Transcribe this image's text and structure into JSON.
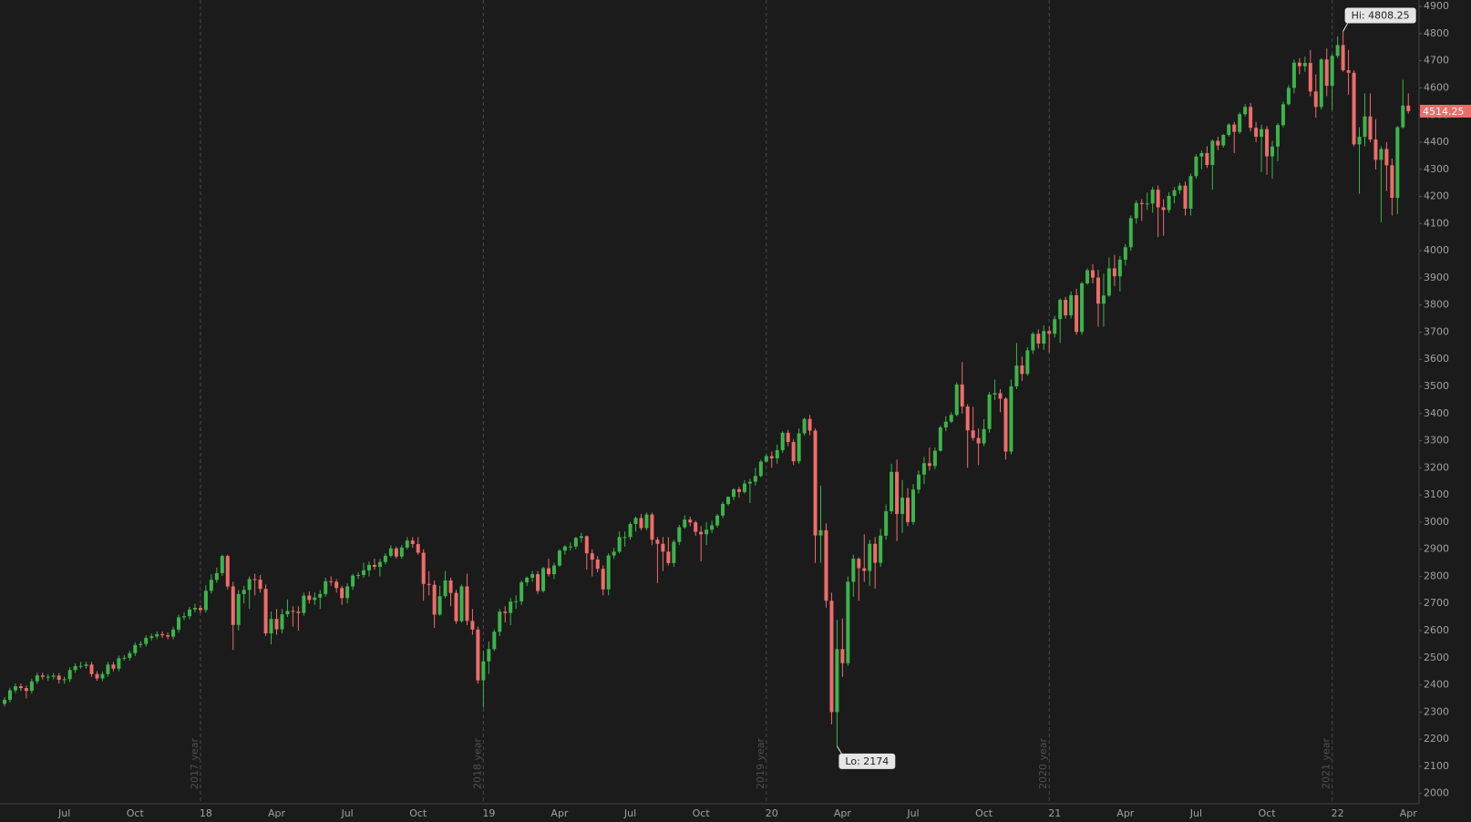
{
  "chart_data": {
    "type": "candlestick",
    "up_color": "#3cb44b",
    "down_color": "#f06b6b",
    "ylim": [
      1962,
      4924
    ],
    "yticks": [
      2000,
      2100,
      2200,
      2300,
      2400,
      2500,
      2600,
      2700,
      2800,
      2900,
      3000,
      3100,
      3200,
      3300,
      3400,
      3500,
      3600,
      3700,
      3800,
      3900,
      4000,
      4100,
      4200,
      4300,
      4400,
      4500,
      4600,
      4700,
      4800,
      4900
    ],
    "year_lines": [
      "2017 year",
      "2018 year",
      "2019 year",
      "2020 year",
      "2021 year"
    ],
    "annotations": [
      {
        "text": "Hi: 4808.25"
      },
      {
        "text": "Lo: 2174"
      }
    ],
    "categories": [
      null,
      null,
      null,
      null,
      null,
      null,
      null,
      null,
      null,
      null,
      null,
      "Jul",
      null,
      null,
      null,
      null,
      null,
      null,
      null,
      null,
      null,
      null,
      null,
      null,
      "Oct",
      null,
      null,
      null,
      null,
      null,
      null,
      null,
      null,
      null,
      null,
      null,
      null,
      "18",
      null,
      null,
      null,
      null,
      null,
      null,
      null,
      null,
      null,
      null,
      null,
      null,
      "Apr",
      null,
      null,
      null,
      null,
      null,
      null,
      null,
      null,
      null,
      null,
      null,
      null,
      "Jul",
      null,
      null,
      null,
      null,
      null,
      null,
      null,
      null,
      null,
      null,
      null,
      null,
      "Oct",
      null,
      null,
      null,
      null,
      null,
      null,
      null,
      null,
      null,
      null,
      null,
      null,
      "19",
      null,
      null,
      null,
      null,
      null,
      null,
      null,
      null,
      null,
      null,
      null,
      null,
      "Apr",
      null,
      null,
      null,
      null,
      null,
      null,
      null,
      null,
      null,
      null,
      null,
      null,
      "Jul",
      null,
      null,
      null,
      null,
      null,
      null,
      null,
      null,
      null,
      null,
      null,
      null,
      "Oct",
      null,
      null,
      null,
      null,
      null,
      null,
      null,
      null,
      null,
      null,
      null,
      null,
      "20",
      null,
      null,
      null,
      null,
      null,
      null,
      null,
      null,
      null,
      null,
      null,
      null,
      "Apr",
      null,
      null,
      null,
      null,
      null,
      null,
      null,
      null,
      null,
      null,
      null,
      null,
      "Jul",
      null,
      null,
      null,
      null,
      null,
      null,
      null,
      null,
      null,
      null,
      null,
      null,
      "Oct",
      null,
      null,
      null,
      null,
      null,
      null,
      null,
      null,
      null,
      null,
      null,
      null,
      "21",
      null,
      null,
      null,
      null,
      null,
      null,
      null,
      null,
      null,
      null,
      null,
      null,
      "Apr",
      null,
      null,
      null,
      null,
      null,
      null,
      null,
      null,
      null,
      null,
      null,
      null,
      "Jul",
      null,
      null,
      null,
      null,
      null,
      null,
      null,
      null,
      null,
      null,
      null,
      null,
      "Oct",
      null,
      null,
      null,
      null,
      null,
      null,
      null,
      null,
      null,
      null,
      null,
      null,
      "22",
      null,
      null,
      null,
      null,
      null,
      null,
      null,
      null,
      null,
      null,
      null,
      null,
      "Apr"
    ],
    "open": [
      2330,
      2345,
      2380,
      2395,
      2388,
      2378,
      2413,
      2435,
      2430,
      2430,
      2434,
      2419,
      2421,
      2455,
      2469,
      2470,
      2475,
      2440,
      2424,
      2440,
      2475,
      2460,
      2498,
      2500,
      2517,
      2547,
      2551,
      2573,
      2579,
      2587,
      2583,
      2578,
      2604,
      2649,
      2653,
      2678,
      2684,
      2676,
      2747,
      2787,
      2812,
      2875,
      2763,
      2621,
      2735,
      2750,
      2790,
      2788,
      2754,
      2590,
      2643,
      2605,
      2660,
      2673,
      2670,
      2665,
      2729,
      2713,
      2722,
      2735,
      2782,
      2780,
      2757,
      2720,
      2763,
      2803,
      2805,
      2822,
      2842,
      2835,
      2853,
      2876,
      2903,
      2873,
      2906,
      2932,
      2919,
      2887,
      2772,
      2769,
      2659,
      2727,
      2785,
      2739,
      2635,
      2763,
      2636,
      2604,
      2417,
      2487,
      2532,
      2596,
      2670,
      2665,
      2707,
      2708,
      2778,
      2795,
      2808,
      2746,
      2830,
      2808,
      2840,
      2895,
      2910,
      2910,
      2942,
      2948,
      2885,
      2862,
      2828,
      2752,
      2877,
      2891,
      2945,
      2945,
      2993,
      3015,
      2978,
      3028,
      2935,
      2920,
      2891,
      2849,
      2927,
      2981,
      3009,
      2999,
      2964,
      2955,
      2972,
      2988,
      3024,
      3067,
      3093,
      3121,
      3111,
      3142,
      3149,
      3170,
      3223,
      3243,
      3235,
      3265,
      3329,
      3295,
      3224,
      3327,
      3380,
      3337,
      2951,
      2970,
      2710,
      2300,
      2532,
      2480,
      2780,
      2865,
      2830,
      2820,
      2920,
      2850,
      2950,
      3040,
      3185,
      3030,
      3090,
      3000,
      3120,
      3175,
      3217,
      3207,
      3263,
      3349,
      3370,
      3395,
      3507,
      3426,
      3338,
      3310,
      3290,
      3343,
      3470,
      3475,
      3455,
      3260,
      3500,
      3577,
      3546,
      3633,
      3694,
      3658,
      3704,
      3694,
      3748,
      3819,
      3762,
      3836,
      3701,
      3880,
      3928,
      3901,
      3805,
      3835,
      3935,
      3906,
      3967,
      4013,
      4120,
      4176,
      4172,
      4174,
      4225,
      4160,
      4150,
      4202,
      4223,
      4240,
      4155,
      4275,
      4347,
      4360,
      4316,
      4405,
      4388,
      4427,
      4465,
      4438,
      4503,
      4530,
      4453,
      4420,
      4448,
      4348,
      4384,
      4463,
      4540,
      4600,
      4693,
      4680,
      4692,
      4587,
      4530,
      4705,
      4608,
      4718,
      4758,
      4665,
      4656,
      4392,
      4420,
      4495,
      4410,
      4335,
      4375,
      4315,
      4195,
      4455,
      4535
    ],
    "high": [
      2355,
      2390,
      2405,
      2405,
      2398,
      2423,
      2445,
      2445,
      2440,
      2444,
      2444,
      2431,
      2465,
      2479,
      2485,
      2485,
      2485,
      2450,
      2450,
      2485,
      2485,
      2508,
      2510,
      2527,
      2557,
      2561,
      2583,
      2589,
      2597,
      2597,
      2593,
      2614,
      2659,
      2668,
      2688,
      2699,
      2694,
      2767,
      2807,
      2832,
      2880,
      2880,
      2780,
      2750,
      2765,
      2800,
      2810,
      2805,
      2770,
      2670,
      2680,
      2680,
      2715,
      2690,
      2690,
      2740,
      2745,
      2740,
      2750,
      2795,
      2800,
      2790,
      2765,
      2775,
      2810,
      2815,
      2850,
      2855,
      2865,
      2865,
      2885,
      2915,
      2910,
      2915,
      2945,
      2945,
      2945,
      2900,
      2820,
      2785,
      2765,
      2820,
      2795,
      2750,
      2770,
      2810,
      2680,
      2615,
      2525,
      2560,
      2605,
      2680,
      2690,
      2720,
      2730,
      2785,
      2800,
      2820,
      2820,
      2835,
      2865,
      2850,
      2900,
      2915,
      2925,
      2945,
      2960,
      2950,
      2900,
      2875,
      2840,
      2885,
      2905,
      2965,
      2965,
      3000,
      3020,
      3030,
      3035,
      3035,
      2945,
      2945,
      2945,
      2935,
      2990,
      3025,
      3020,
      3005,
      2985,
      3000,
      3005,
      3030,
      3075,
      3095,
      3125,
      3130,
      3155,
      3160,
      3200,
      3230,
      3250,
      3260,
      3285,
      3335,
      3340,
      3305,
      3345,
      3385,
      3395,
      3345,
      3135,
      2995,
      2740,
      2640,
      2645,
      2800,
      2880,
      2870,
      2955,
      2935,
      2945,
      2975,
      3065,
      3215,
      3230,
      3155,
      3125,
      3140,
      3190,
      3240,
      3275,
      3275,
      3355,
      3390,
      3405,
      3515,
      3590,
      3435,
      3425,
      3345,
      3380,
      3480,
      3525,
      3490,
      3460,
      3525,
      3660,
      3610,
      3645,
      3700,
      3710,
      3725,
      3720,
      3760,
      3825,
      3830,
      3850,
      3860,
      3885,
      3935,
      3950,
      3930,
      3915,
      3975,
      3985,
      3980,
      4025,
      4130,
      4185,
      4190,
      4215,
      4235,
      4240,
      4190,
      4215,
      4235,
      4250,
      4255,
      4285,
      4355,
      4370,
      4385,
      4410,
      4420,
      4430,
      4470,
      4475,
      4510,
      4540,
      4545,
      4475,
      4465,
      4460,
      4405,
      4470,
      4550,
      4610,
      4705,
      4710,
      4715,
      4740,
      4650,
      4710,
      4745,
      4725,
      4790,
      4808.25,
      4740,
      4665,
      4455,
      4580,
      4580,
      4485,
      4385,
      4400,
      4340,
      4460,
      4630,
      4580
    ],
    "low": [
      2320,
      2335,
      2370,
      2378,
      2350,
      2368,
      2403,
      2420,
      2415,
      2420,
      2405,
      2405,
      2411,
      2445,
      2460,
      2460,
      2430,
      2415,
      2414,
      2430,
      2450,
      2450,
      2490,
      2490,
      2507,
      2537,
      2541,
      2563,
      2569,
      2573,
      2568,
      2568,
      2594,
      2639,
      2643,
      2668,
      2666,
      2666,
      2737,
      2777,
      2802,
      2752,
      2529,
      2601,
      2700,
      2680,
      2730,
      2740,
      2580,
      2550,
      2585,
      2590,
      2650,
      2615,
      2600,
      2655,
      2700,
      2695,
      2680,
      2725,
      2765,
      2740,
      2695,
      2700,
      2750,
      2790,
      2795,
      2800,
      2825,
      2800,
      2845,
      2870,
      2865,
      2865,
      2900,
      2905,
      2880,
      2710,
      2730,
      2610,
      2655,
      2720,
      2690,
      2625,
      2630,
      2620,
      2585,
      2405,
      2317,
      2440,
      2525,
      2580,
      2630,
      2620,
      2680,
      2695,
      2765,
      2780,
      2735,
      2740,
      2800,
      2790,
      2835,
      2880,
      2895,
      2900,
      2925,
      2825,
      2800,
      2815,
      2730,
      2730,
      2865,
      2885,
      2910,
      2935,
      2965,
      2970,
      2970,
      2915,
      2775,
      2820,
      2840,
      2835,
      2915,
      2975,
      2985,
      2950,
      2855,
      2915,
      2960,
      2980,
      3015,
      3060,
      3080,
      3090,
      3105,
      3070,
      3135,
      3165,
      3220,
      3200,
      3215,
      3255,
      3280,
      3210,
      3215,
      3320,
      3320,
      2850,
      2850,
      2685,
      2255,
      2174,
      2430,
      2470,
      2725,
      2710,
      2780,
      2765,
      2755,
      2835,
      2935,
      3030,
      2930,
      2960,
      2985,
      2990,
      3105,
      3140,
      3190,
      3195,
      3260,
      3335,
      3365,
      3390,
      3400,
      3200,
      3300,
      3210,
      3280,
      3330,
      3450,
      3405,
      3230,
      3250,
      3490,
      3520,
      3540,
      3620,
      3640,
      3635,
      3625,
      3680,
      3660,
      3750,
      3750,
      3690,
      3690,
      3875,
      3880,
      3720,
      3720,
      3830,
      3870,
      3850,
      3945,
      4000,
      4100,
      4110,
      4150,
      4140,
      4050,
      4055,
      4140,
      4175,
      4210,
      4130,
      4130,
      4265,
      4300,
      4305,
      4225,
      4370,
      4380,
      4420,
      4360,
      4430,
      4495,
      4440,
      4400,
      4290,
      4280,
      4265,
      4330,
      4455,
      4535,
      4580,
      4650,
      4660,
      4570,
      4490,
      4520,
      4570,
      4520,
      4710,
      4660,
      4575,
      4385,
      4210,
      4385,
      4400,
      4300,
      4105,
      4220,
      4130,
      4135,
      4450,
      4505
    ],
    "close": [
      2345,
      2380,
      2395,
      2388,
      2378,
      2413,
      2435,
      2430,
      2430,
      2434,
      2419,
      2421,
      2455,
      2469,
      2470,
      2475,
      2440,
      2424,
      2440,
      2475,
      2460,
      2498,
      2500,
      2517,
      2547,
      2551,
      2573,
      2579,
      2587,
      2583,
      2578,
      2604,
      2649,
      2653,
      2678,
      2684,
      2676,
      2747,
      2787,
      2812,
      2875,
      2763,
      2621,
      2735,
      2750,
      2790,
      2788,
      2754,
      2590,
      2643,
      2605,
      2660,
      2673,
      2670,
      2665,
      2729,
      2713,
      2722,
      2735,
      2782,
      2780,
      2757,
      2720,
      2763,
      2803,
      2805,
      2822,
      2842,
      2835,
      2853,
      2876,
      2903,
      2873,
      2906,
      2932,
      2919,
      2887,
      2772,
      2769,
      2659,
      2727,
      2785,
      2739,
      2635,
      2763,
      2636,
      2604,
      2417,
      2487,
      2532,
      2596,
      2670,
      2665,
      2707,
      2708,
      2778,
      2795,
      2808,
      2746,
      2830,
      2808,
      2840,
      2895,
      2910,
      2910,
      2942,
      2948,
      2885,
      2862,
      2828,
      2752,
      2877,
      2891,
      2945,
      2945,
      2993,
      3015,
      2978,
      3028,
      2935,
      2920,
      2891,
      2849,
      2927,
      2981,
      3009,
      2999,
      2964,
      2955,
      2972,
      2988,
      3024,
      3067,
      3093,
      3121,
      3111,
      3142,
      3149,
      3170,
      3223,
      3243,
      3235,
      3265,
      3329,
      3295,
      3224,
      3327,
      3380,
      3337,
      2951,
      2970,
      2710,
      2300,
      2532,
      2480,
      2780,
      2865,
      2830,
      2820,
      2920,
      2850,
      2950,
      3040,
      3185,
      3030,
      3090,
      3000,
      3120,
      3175,
      3217,
      3207,
      3263,
      3349,
      3370,
      3395,
      3507,
      3426,
      3338,
      3310,
      3290,
      3343,
      3470,
      3475,
      3455,
      3260,
      3500,
      3577,
      3546,
      3633,
      3694,
      3658,
      3704,
      3694,
      3748,
      3819,
      3762,
      3836,
      3701,
      3880,
      3928,
      3901,
      3805,
      3835,
      3935,
      3906,
      3967,
      4013,
      4120,
      4176,
      4172,
      4174,
      4225,
      4160,
      4150,
      4202,
      4223,
      4240,
      4155,
      4275,
      4347,
      4360,
      4316,
      4405,
      4388,
      4427,
      4465,
      4438,
      4503,
      4530,
      4453,
      4420,
      4448,
      4348,
      4384,
      4463,
      4540,
      4600,
      4693,
      4680,
      4692,
      4587,
      4530,
      4705,
      4608,
      4718,
      4758,
      4665,
      4656,
      4392,
      4420,
      4495,
      4410,
      4335,
      4375,
      4315,
      4195,
      4455,
      4535,
      4514.25
    ]
  }
}
